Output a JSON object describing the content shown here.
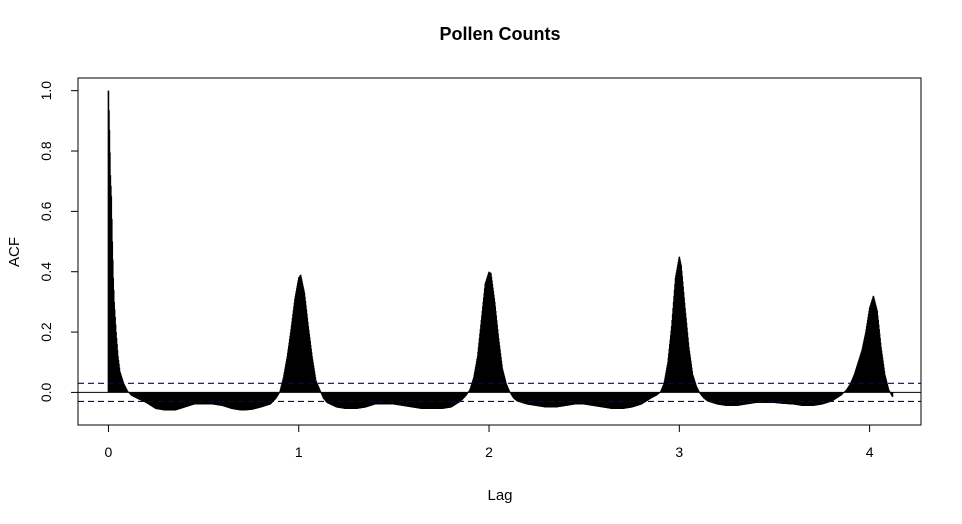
{
  "chart_data": {
    "type": "bar",
    "title": "Pollen Counts",
    "xlabel": "Lag",
    "ylabel": "ACF",
    "xlim": [
      -0.16,
      4.27
    ],
    "ylim": [
      -0.108,
      1.042
    ],
    "x_ticks": [
      {
        "value": 0,
        "label": "0"
      },
      {
        "value": 1,
        "label": "1"
      },
      {
        "value": 2,
        "label": "2"
      },
      {
        "value": 3,
        "label": "3"
      },
      {
        "value": 4,
        "label": "4"
      }
    ],
    "y_ticks": [
      {
        "value": 0.0,
        "label": "0.0"
      },
      {
        "value": 0.2,
        "label": "0.2"
      },
      {
        "value": 0.4,
        "label": "0.4"
      },
      {
        "value": 0.6,
        "label": "0.6"
      },
      {
        "value": 0.8,
        "label": "0.8"
      },
      {
        "value": 1.0,
        "label": "1.0"
      }
    ],
    "confidence_bound": 0.03,
    "colors": {
      "bars": "#000000",
      "confidence": "#00008B",
      "zero_line": "#000000"
    },
    "series": [
      {
        "values": [
          [
            0.0,
            1.0
          ],
          [
            0.005,
            0.87
          ],
          [
            0.01,
            0.72
          ],
          [
            0.015,
            0.65
          ],
          [
            0.02,
            0.5
          ],
          [
            0.025,
            0.38
          ],
          [
            0.03,
            0.3
          ],
          [
            0.04,
            0.2
          ],
          [
            0.05,
            0.12
          ],
          [
            0.06,
            0.07
          ],
          [
            0.08,
            0.03
          ],
          [
            0.1,
            0.005
          ],
          [
            0.12,
            -0.01
          ],
          [
            0.15,
            -0.02
          ],
          [
            0.2,
            -0.035
          ],
          [
            0.25,
            -0.055
          ],
          [
            0.3,
            -0.06
          ],
          [
            0.35,
            -0.06
          ],
          [
            0.4,
            -0.05
          ],
          [
            0.45,
            -0.04
          ],
          [
            0.5,
            -0.04
          ],
          [
            0.55,
            -0.04
          ],
          [
            0.6,
            -0.045
          ],
          [
            0.65,
            -0.055
          ],
          [
            0.7,
            -0.06
          ],
          [
            0.75,
            -0.058
          ],
          [
            0.8,
            -0.05
          ],
          [
            0.85,
            -0.04
          ],
          [
            0.88,
            -0.02
          ],
          [
            0.9,
            0.0
          ],
          [
            0.92,
            0.05
          ],
          [
            0.94,
            0.12
          ],
          [
            0.96,
            0.21
          ],
          [
            0.98,
            0.31
          ],
          [
            1.0,
            0.38
          ],
          [
            1.01,
            0.39
          ],
          [
            1.03,
            0.33
          ],
          [
            1.05,
            0.22
          ],
          [
            1.07,
            0.12
          ],
          [
            1.09,
            0.04
          ],
          [
            1.11,
            0.01
          ],
          [
            1.13,
            -0.02
          ],
          [
            1.15,
            -0.035
          ],
          [
            1.2,
            -0.05
          ],
          [
            1.25,
            -0.055
          ],
          [
            1.3,
            -0.055
          ],
          [
            1.35,
            -0.05
          ],
          [
            1.4,
            -0.04
          ],
          [
            1.45,
            -0.04
          ],
          [
            1.5,
            -0.04
          ],
          [
            1.55,
            -0.045
          ],
          [
            1.6,
            -0.05
          ],
          [
            1.65,
            -0.055
          ],
          [
            1.7,
            -0.055
          ],
          [
            1.75,
            -0.055
          ],
          [
            1.8,
            -0.05
          ],
          [
            1.85,
            -0.03
          ],
          [
            1.88,
            -0.01
          ],
          [
            1.9,
            0.01
          ],
          [
            1.92,
            0.05
          ],
          [
            1.94,
            0.12
          ],
          [
            1.96,
            0.24
          ],
          [
            1.98,
            0.36
          ],
          [
            2.0,
            0.4
          ],
          [
            2.01,
            0.395
          ],
          [
            2.03,
            0.3
          ],
          [
            2.05,
            0.18
          ],
          [
            2.07,
            0.08
          ],
          [
            2.09,
            0.03
          ],
          [
            2.11,
            0.0
          ],
          [
            2.13,
            -0.02
          ],
          [
            2.15,
            -0.03
          ],
          [
            2.2,
            -0.04
          ],
          [
            2.25,
            -0.045
          ],
          [
            2.3,
            -0.05
          ],
          [
            2.35,
            -0.05
          ],
          [
            2.4,
            -0.045
          ],
          [
            2.45,
            -0.04
          ],
          [
            2.5,
            -0.04
          ],
          [
            2.55,
            -0.045
          ],
          [
            2.6,
            -0.05
          ],
          [
            2.65,
            -0.055
          ],
          [
            2.7,
            -0.055
          ],
          [
            2.75,
            -0.05
          ],
          [
            2.8,
            -0.04
          ],
          [
            2.85,
            -0.02
          ],
          [
            2.88,
            -0.01
          ],
          [
            2.9,
            0.0
          ],
          [
            2.92,
            0.03
          ],
          [
            2.94,
            0.1
          ],
          [
            2.96,
            0.22
          ],
          [
            2.98,
            0.38
          ],
          [
            3.0,
            0.45
          ],
          [
            3.01,
            0.42
          ],
          [
            3.03,
            0.28
          ],
          [
            3.05,
            0.15
          ],
          [
            3.07,
            0.06
          ],
          [
            3.09,
            0.02
          ],
          [
            3.11,
            -0.005
          ],
          [
            3.13,
            -0.02
          ],
          [
            3.15,
            -0.03
          ],
          [
            3.2,
            -0.04
          ],
          [
            3.25,
            -0.045
          ],
          [
            3.3,
            -0.045
          ],
          [
            3.35,
            -0.04
          ],
          [
            3.4,
            -0.035
          ],
          [
            3.45,
            -0.035
          ],
          [
            3.5,
            -0.035
          ],
          [
            3.55,
            -0.038
          ],
          [
            3.6,
            -0.04
          ],
          [
            3.65,
            -0.045
          ],
          [
            3.7,
            -0.045
          ],
          [
            3.75,
            -0.04
          ],
          [
            3.8,
            -0.03
          ],
          [
            3.85,
            -0.01
          ],
          [
            3.88,
            0.01
          ],
          [
            3.9,
            0.03
          ],
          [
            3.92,
            0.06
          ],
          [
            3.94,
            0.1
          ],
          [
            3.96,
            0.14
          ],
          [
            3.98,
            0.2
          ],
          [
            4.0,
            0.28
          ],
          [
            4.02,
            0.32
          ],
          [
            4.04,
            0.27
          ],
          [
            4.06,
            0.15
          ],
          [
            4.08,
            0.06
          ],
          [
            4.1,
            0.01
          ],
          [
            4.12,
            -0.015
          ]
        ]
      }
    ]
  }
}
